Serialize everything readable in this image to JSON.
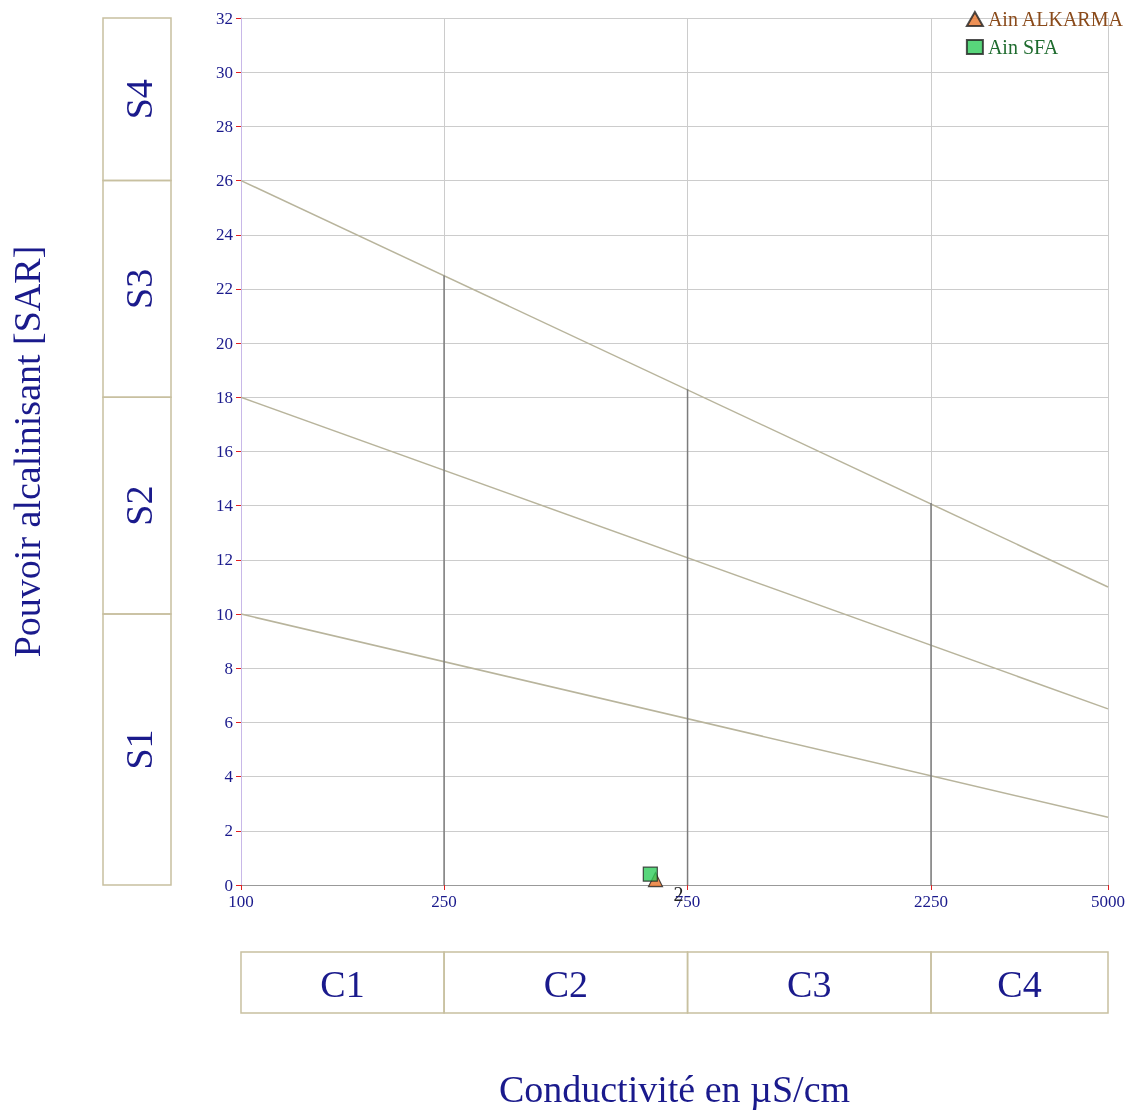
{
  "chart_data": {
    "type": "scatter",
    "xlabel": "Conductivité en µS/cm",
    "ylabel": "Pouvoir alcalinisant [SAR]",
    "log": "x",
    "xlim": [
      100,
      5000
    ],
    "xticks": [
      100,
      250,
      750,
      2250,
      5000
    ],
    "ylim": [
      0,
      32
    ],
    "yticks": [
      0,
      2,
      4,
      6,
      8,
      10,
      12,
      14,
      16,
      18,
      20,
      22,
      24,
      26,
      28,
      30,
      32
    ],
    "grid": true,
    "legend": "top right",
    "series": [
      {
        "type": "line",
        "color": "#b8b49c",
        "x": [
          100,
          5000
        ],
        "values": [
          10,
          2.5
        ]
      },
      {
        "type": "line",
        "color": "#b8b49c",
        "x": [
          100,
          5000
        ],
        "values": [
          18,
          6.5
        ]
      },
      {
        "type": "line",
        "color": "#b8b49c",
        "x": [
          100,
          5000
        ],
        "values": [
          26,
          11
        ]
      },
      {
        "type": "line",
        "color": "#7c7c7c",
        "x": [
          250,
          250
        ],
        "values": [
          0,
          22.5
        ]
      },
      {
        "type": "line",
        "color": "#7c7c7c",
        "x": [
          750,
          750
        ],
        "values": [
          0,
          18.3
        ]
      },
      {
        "type": "line",
        "color": "#7c7c7c",
        "x": [
          2250,
          2250
        ],
        "values": [
          0,
          14.1
        ]
      },
      {
        "name": "Ain ALKARMA",
        "marker": "triangle",
        "color": "#e8742a",
        "x": [
          649
        ],
        "values": [
          0.2
        ]
      },
      {
        "name": "Ain SFA",
        "marker": "square",
        "color": "#2ecc5a",
        "x": [
          634
        ],
        "values": [
          0.4
        ]
      }
    ],
    "annotations": [
      "S1",
      "S2",
      "S3",
      "S4",
      "C1",
      "C2",
      "C3",
      "C4",
      "2"
    ]
  }
}
